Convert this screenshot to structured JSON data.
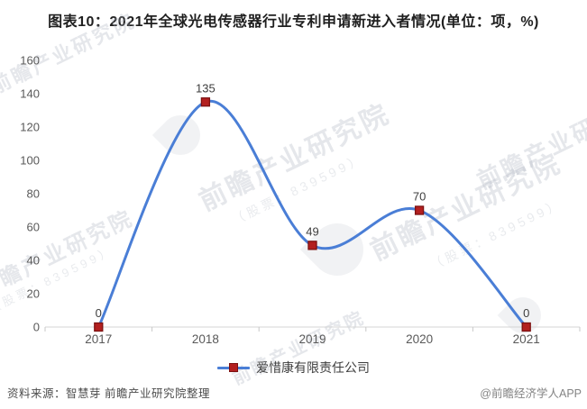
{
  "title": "图表10：2021年全球光电传感器行业专利申请新进入者情况(单位：项，%)",
  "chart_data": {
    "type": "line",
    "smooth": true,
    "categories": [
      "2017",
      "2018",
      "2019",
      "2020",
      "2021"
    ],
    "series": [
      {
        "name": "爱惜康有限责任公司",
        "values": [
          0,
          135,
          49,
          70,
          0
        ]
      }
    ],
    "title": "图表10：2021年全球光电传感器行业专利申请新进入者情况(单位：项，%)",
    "xlabel": "",
    "ylabel": "",
    "ylim": [
      0,
      160
    ],
    "ytick_interval": 20,
    "grid": false,
    "legend_position": "bottom",
    "line_color": "#4A7ED6",
    "marker_color": "#B32020",
    "marker_border_color": "#7D1111",
    "axis_line_color": "#D4D4D4",
    "axis_tick_color": "#C8C8C8",
    "axis_label_color": "#595959",
    "data_label_color": "#3D3D3D"
  },
  "legend": {
    "label": "爱惜康有限责任公司"
  },
  "footer": {
    "source": "资料来源：智慧芽 前瞻产业研究院整理",
    "credit": "@前瞻经济学人APP"
  },
  "watermark": {
    "brand": "前瞻产业研究院",
    "stock_note": "（股票：839599）"
  }
}
